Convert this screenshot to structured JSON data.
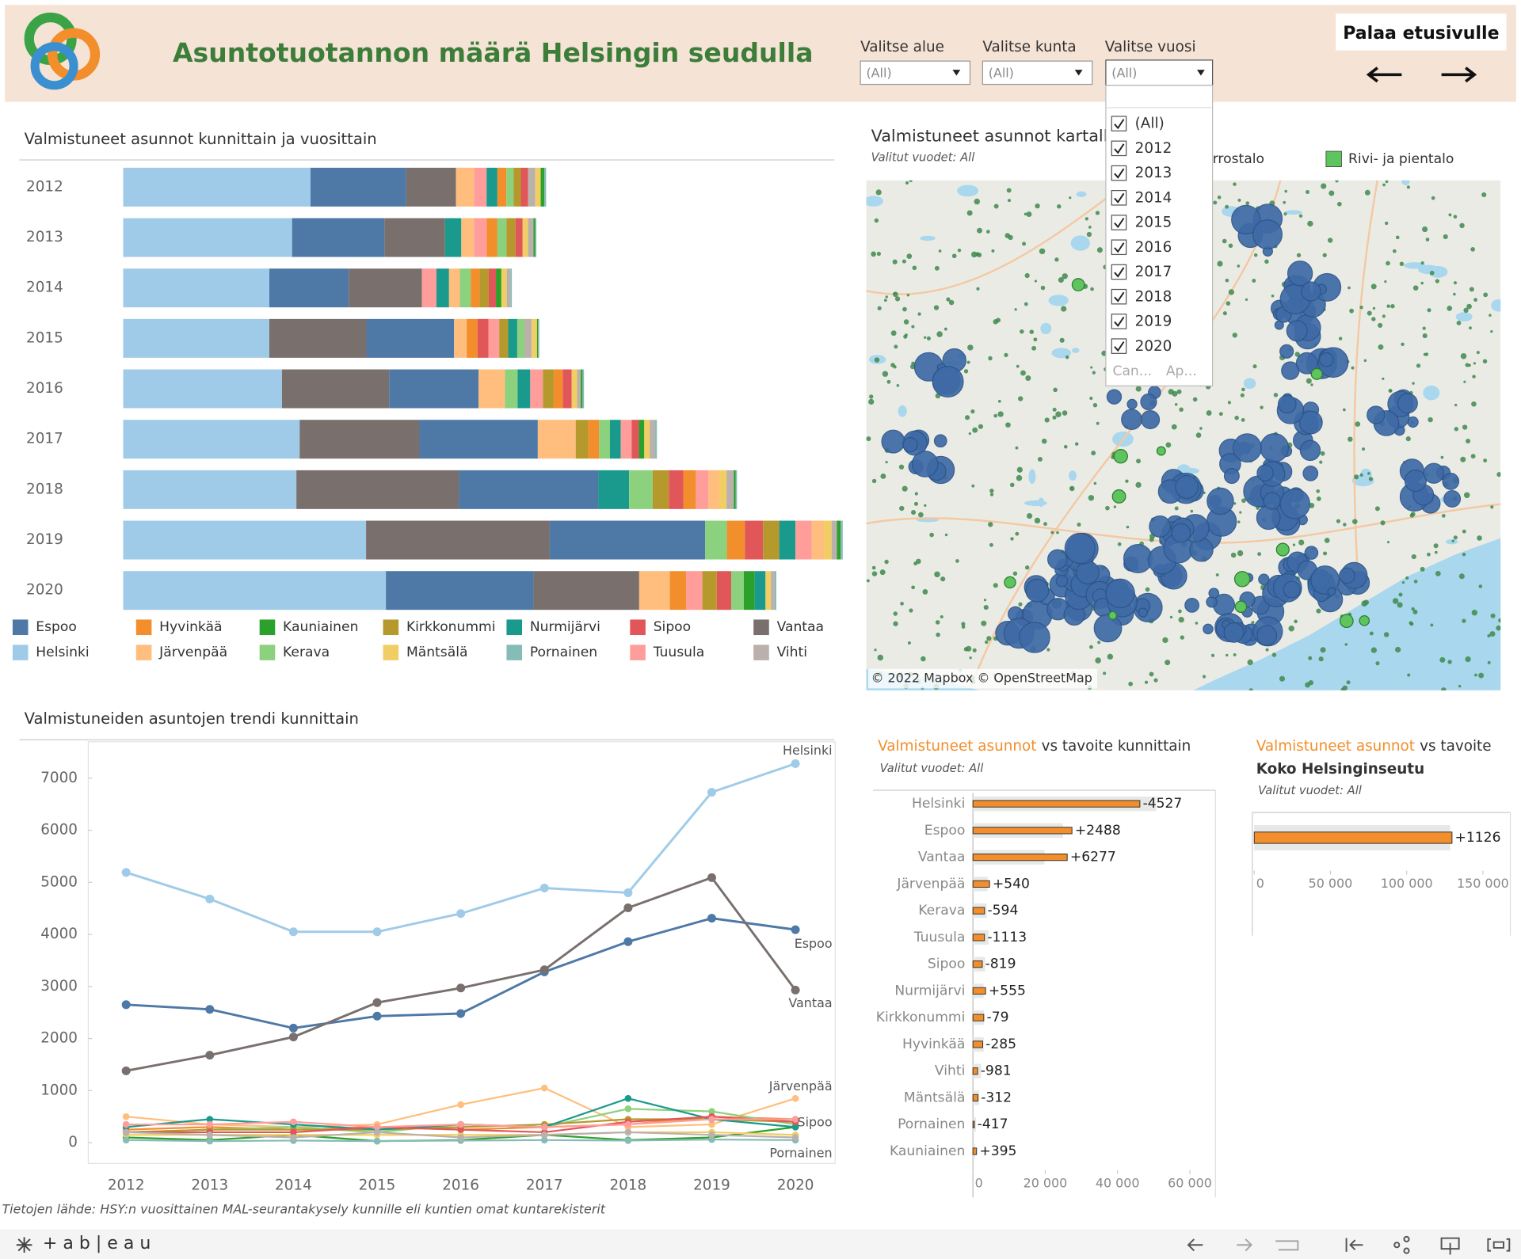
{
  "header": {
    "title": "Asuntotuotannon määrä Helsingin seudulla",
    "filters": [
      {
        "label": "Valitse alue",
        "value": "(All)"
      },
      {
        "label": "Valitse kunta",
        "value": "(All)"
      },
      {
        "label": "Valitse vuosi",
        "value": "(All)"
      }
    ],
    "back_button": "Palaa etusivulle"
  },
  "dropdown": {
    "options": [
      "(All)",
      "2012",
      "2013",
      "2014",
      "2015",
      "2016",
      "2017",
      "2018",
      "2019",
      "2020"
    ],
    "buttons": [
      "Can...",
      "Ap..."
    ]
  },
  "map": {
    "title": "Valmistuneet asunnot kartalla",
    "subtitle": "Valitut vuodet: All",
    "legend": [
      "Kerrostalo",
      "Rivi- ja pientalo"
    ],
    "attribution": "© 2022 Mapbox © OpenStreetMap"
  },
  "chart_data": [
    {
      "type": "bar",
      "orientation": "horizontal",
      "stacked": true,
      "title": "Valmistuneet asunnot kunnittain ja vuosittain",
      "categories": [
        "2012",
        "2013",
        "2014",
        "2015",
        "2016",
        "2017",
        "2018",
        "2019",
        "2020"
      ],
      "series": [
        {
          "name": "Espoo",
          "color": "#4e79a7",
          "values": [
            2650,
            2560,
            2200,
            2430,
            2480,
            3280,
            3860,
            4310,
            4090
          ]
        },
        {
          "name": "Helsinki",
          "color": "#a0cbe8",
          "values": [
            5190,
            4680,
            4050,
            4050,
            4400,
            4890,
            4800,
            6730,
            7280
          ]
        },
        {
          "name": "Hyvinkää",
          "color": "#f28e2b",
          "values": [
            250,
            300,
            250,
            300,
            250,
            300,
            350,
            500,
            450
          ]
        },
        {
          "name": "Järvenpää",
          "color": "#ffbe7d",
          "values": [
            500,
            350,
            300,
            350,
            730,
            1050,
            300,
            350,
            850
          ]
        },
        {
          "name": "Kauniainen",
          "color": "#2ca02c",
          "values": [
            100,
            50,
            150,
            30,
            50,
            150,
            50,
            100,
            300
          ]
        },
        {
          "name": "Kerava",
          "color": "#8cd17d",
          "values": [
            200,
            250,
            300,
            200,
            350,
            300,
            650,
            600,
            350
          ]
        },
        {
          "name": "Kirkkonummi",
          "color": "#b6992d",
          "values": [
            200,
            250,
            250,
            250,
            300,
            350,
            450,
            450,
            400
          ]
        },
        {
          "name": "Mäntsälä",
          "color": "#f1ce63",
          "values": [
            150,
            150,
            150,
            150,
            150,
            150,
            200,
            200,
            150
          ]
        },
        {
          "name": "Nurmijärvi",
          "color": "#1a9a8c",
          "values": [
            300,
            450,
            350,
            250,
            350,
            300,
            850,
            450,
            300
          ]
        },
        {
          "name": "Pornainen",
          "color": "#86bcb6",
          "values": [
            50,
            30,
            40,
            30,
            40,
            50,
            40,
            60,
            50
          ]
        },
        {
          "name": "Sipoo",
          "color": "#e15759",
          "values": [
            200,
            200,
            200,
            300,
            250,
            200,
            400,
            500,
            400
          ]
        },
        {
          "name": "Tuusula",
          "color": "#ff9d9a",
          "values": [
            350,
            350,
            400,
            300,
            350,
            300,
            350,
            450,
            450
          ]
        },
        {
          "name": "Vantaa",
          "color": "#79706e",
          "values": [
            1380,
            1680,
            2030,
            2690,
            2970,
            3320,
            4510,
            5090,
            2930
          ]
        },
        {
          "name": "Vihti",
          "color": "#bab0ac",
          "values": [
            200,
            150,
            100,
            200,
            100,
            150,
            200,
            150,
            100
          ]
        }
      ]
    },
    {
      "type": "line",
      "title": "Valmistuneiden asuntojen trendi kunnittain",
      "categories": [
        "2012",
        "2013",
        "2014",
        "2015",
        "2016",
        "2017",
        "2018",
        "2019",
        "2020"
      ],
      "ylim": [
        -400,
        7700
      ],
      "yticks": [
        0,
        1000,
        2000,
        3000,
        4000,
        5000,
        6000,
        7000
      ],
      "labelled_series": [
        "Helsinki",
        "Espoo",
        "Vantaa",
        "Järvenpää",
        "Sipoo",
        "Pornainen"
      ]
    },
    {
      "type": "bar",
      "orientation": "horizontal",
      "title_highlight": "Valmistuneet asunnot",
      "title": "vs tavoite kunnittain",
      "note": "Valitut vuodet: All",
      "categories": [
        "Helsinki",
        "Espoo",
        "Vantaa",
        "Järvenpää",
        "Kerava",
        "Tuusula",
        "Sipoo",
        "Nurmijärvi",
        "Kirkkonummi",
        "Hyvinkää",
        "Vihti",
        "Mäntsälä",
        "Pornainen",
        "Kauniainen"
      ],
      "targets": [
        50700,
        24900,
        19800,
        4060,
        3800,
        4300,
        3400,
        2950,
        3080,
        2985,
        2280,
        1710,
        820,
        605
      ],
      "values": [
        -4527,
        2488,
        6277,
        540,
        -594,
        -1113,
        -819,
        555,
        -79,
        -285,
        -981,
        -312,
        -417,
        395
      ],
      "value_labels": [
        "-4527",
        "+2488",
        "+6277",
        "+540",
        "-594",
        "-1113",
        "-819",
        "+555",
        "-79",
        "-285",
        "-981",
        "-312",
        "-417",
        "+395"
      ],
      "color": "#f28e2b",
      "target_color": "#e6e9e6",
      "xlim": [
        0,
        66000
      ],
      "xticks": [
        0,
        {
          "value": 20000,
          "label": "20 000"
        },
        {
          "value": 40000,
          "label": "40 000"
        },
        {
          "value": 60000,
          "label": "60 000"
        }
      ]
    },
    {
      "type": "bar",
      "orientation": "horizontal",
      "title_highlight": "Valmistuneet asunnot",
      "title": "vs tavoite",
      "subtitle": "Koko Helsinginseutu",
      "note": "Valitut vuodet: All",
      "targets": [
        128600
      ],
      "values": [
        1126
      ],
      "value_labels": [
        "+1126"
      ],
      "color": "#f28e2b",
      "target_color": "#e6e9e6",
      "xlim": [
        0,
        168000
      ],
      "xticks": [
        0,
        {
          "value": 50000,
          "label": "50 000"
        },
        {
          "value": 100000,
          "label": "100 000"
        },
        {
          "value": 150000,
          "label": "150 000"
        }
      ]
    }
  ],
  "footer": {
    "source": "Tietojen lähde: HSY:n vuosittainen MAL-seurantakysely kunnille eli kuntien omat kuntarekisterit",
    "brand": "+ a b | e a u"
  }
}
